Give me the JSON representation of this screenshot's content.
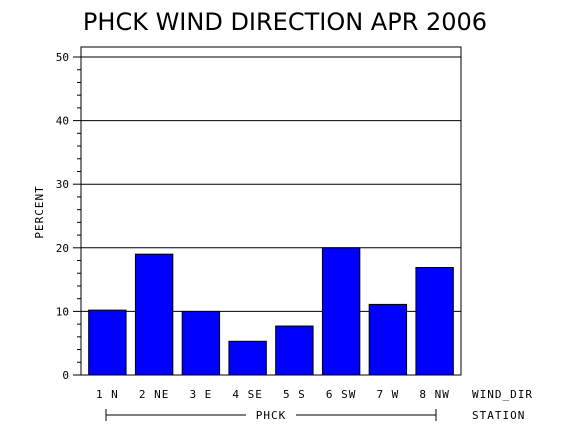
{
  "chart_data": {
    "type": "bar",
    "title": "PHCK WIND DIRECTION APR 2006",
    "ylabel": "PERCENT",
    "xlabel": "WIND_DIR",
    "group_axis_label": "STATION",
    "group_label": "PHCK",
    "categories": [
      "1 N",
      "2 NE",
      "3 E",
      "4 SE",
      "5 S",
      "6 SW",
      "7 W",
      "8 NW"
    ],
    "values": [
      10.2,
      19.0,
      10.0,
      5.3,
      7.7,
      20.0,
      11.1,
      16.9
    ],
    "ylim": [
      0,
      50
    ],
    "yticks": [
      0,
      10,
      20,
      30,
      40,
      50
    ],
    "bar_color": "#0000ff",
    "grid": true
  }
}
